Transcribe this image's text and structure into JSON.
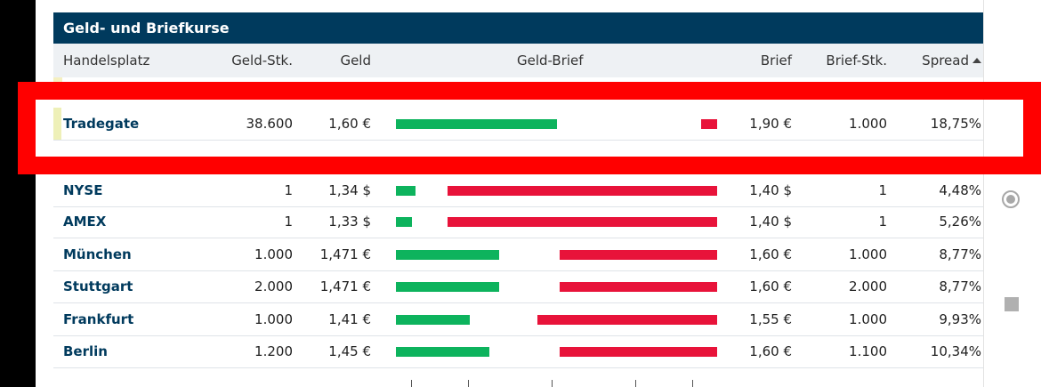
{
  "panel": {
    "title": "Geld- und Briefkurse"
  },
  "columns": {
    "handelsplatz": "Handelsplatz",
    "geld_stk": "Geld-Stk.",
    "geld": "Geld",
    "geld_brief": "Geld-Brief",
    "brief": "Brief",
    "brief_stk": "Brief-Stk.",
    "spread": "Spread"
  },
  "sort": {
    "column": "Spread",
    "direction": "ascending"
  },
  "rows": [
    {
      "name": "Tradegate",
      "geld_stk": "38.600",
      "geld": "1,60 €",
      "brief": "1,90 €",
      "brief_stk": "1.000",
      "spread": "18,75%",
      "bid_fraction": 0.5,
      "ask_fraction": 0.05
    },
    {
      "name": "NYSE",
      "geld_stk": "1",
      "geld": "1,34 $",
      "brief": "1,40 $",
      "brief_stk": "1",
      "spread": "4,48%",
      "bid_fraction": 0.06,
      "ask_fraction": 0.84
    },
    {
      "name": "AMEX",
      "geld_stk": "1",
      "geld": "1,33 $",
      "brief": "1,40 $",
      "brief_stk": "1",
      "spread": "5,26%",
      "bid_fraction": 0.05,
      "ask_fraction": 0.84
    },
    {
      "name": "München",
      "geld_stk": "1.000",
      "geld": "1,471 €",
      "brief": "1,60 €",
      "brief_stk": "1.000",
      "spread": "8,77%",
      "bid_fraction": 0.32,
      "ask_fraction": 0.49
    },
    {
      "name": "Stuttgart",
      "geld_stk": "2.000",
      "geld": "1,471 €",
      "brief": "1,60 €",
      "brief_stk": "2.000",
      "spread": "8,77%",
      "bid_fraction": 0.32,
      "ask_fraction": 0.49
    },
    {
      "name": "Frankfurt",
      "geld_stk": "1.000",
      "geld": "1,41 €",
      "brief": "1,55 €",
      "brief_stk": "1.000",
      "spread": "9,93%",
      "bid_fraction": 0.23,
      "ask_fraction": 0.56
    },
    {
      "name": "Berlin",
      "geld_stk": "1.200",
      "geld": "1,45 €",
      "brief": "1,60 €",
      "brief_stk": "1.100",
      "spread": "10,34%",
      "bid_fraction": 0.29,
      "ask_fraction": 0.49
    }
  ],
  "colors": {
    "header_bg": "#003a5d",
    "bid_bar": "#0db35d",
    "ask_bar": "#e8133a",
    "highlight_frame": "#ff0000"
  },
  "icons": {
    "side_radio": "radio-icon",
    "side_stop": "stop-icon",
    "sort": "sort-up-icon"
  }
}
